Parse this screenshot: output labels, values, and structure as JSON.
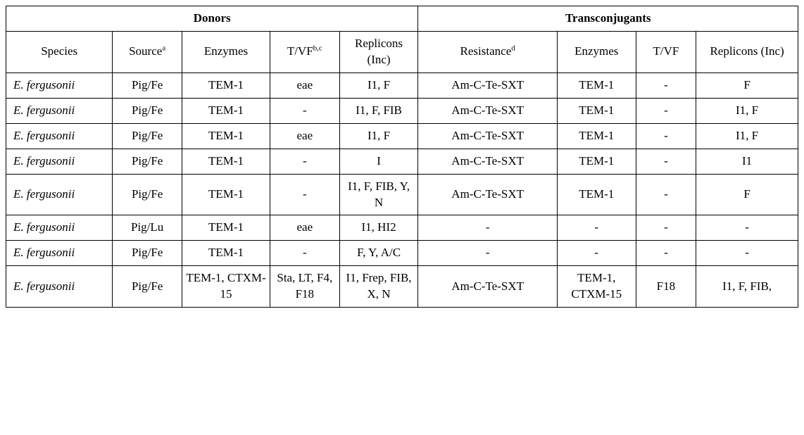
{
  "table": {
    "group_headers": {
      "donors": "Donors",
      "transconjugants": "Transconjugants"
    },
    "sub_headers": {
      "species": "Species",
      "source": {
        "text": "Source",
        "sup": "a"
      },
      "donor_enzymes": "Enzymes",
      "donor_tvf": {
        "text": "T/VF",
        "sup": "b,c"
      },
      "donor_replicons": "Replicons (Inc)",
      "resistance": {
        "text": "Resistance",
        "sup": "d"
      },
      "tc_enzymes": "Enzymes",
      "tc_tvf": "T/VF",
      "tc_replicons": "Replicons (Inc)"
    },
    "rows": [
      {
        "species": "E. fergusonii",
        "source": "Pig/Fe",
        "donor_enzymes": "TEM-1",
        "donor_tvf": "eae",
        "donor_replicons": "I1, F",
        "resistance": "Am-C-Te-SXT",
        "tc_enzymes": "TEM-1",
        "tc_tvf": "-",
        "tc_replicons": "F"
      },
      {
        "species": "E. fergusonii",
        "source": "Pig/Fe",
        "donor_enzymes": "TEM-1",
        "donor_tvf": "-",
        "donor_replicons": "I1, F, FIB",
        "resistance": "Am-C-Te-SXT",
        "tc_enzymes": "TEM-1",
        "tc_tvf": "-",
        "tc_replicons": "I1, F"
      },
      {
        "species": "E. fergusonii",
        "source": "Pig/Fe",
        "donor_enzymes": "TEM-1",
        "donor_tvf": "eae",
        "donor_replicons": "I1, F",
        "resistance": "Am-C-Te-SXT",
        "tc_enzymes": "TEM-1",
        "tc_tvf": "-",
        "tc_replicons": "I1, F"
      },
      {
        "species": "E. fergusonii",
        "source": "Pig/Fe",
        "donor_enzymes": "TEM-1",
        "donor_tvf": "-",
        "donor_replicons": "I",
        "resistance": "Am-C-Te-SXT",
        "tc_enzymes": "TEM-1",
        "tc_tvf": "-",
        "tc_replicons": "I1"
      },
      {
        "species": "E. fergusonii",
        "source": "Pig/Fe",
        "donor_enzymes": "TEM-1",
        "donor_tvf": "-",
        "donor_replicons": "I1, F, FIB, Y, N",
        "resistance": "Am-C-Te-SXT",
        "tc_enzymes": "TEM-1",
        "tc_tvf": "-",
        "tc_replicons": "F"
      },
      {
        "species": "E. fergusonii",
        "source": "Pig/Lu",
        "donor_enzymes": "TEM-1",
        "donor_tvf": "eae",
        "donor_replicons": "I1, HI2",
        "resistance": "-",
        "tc_enzymes": "-",
        "tc_tvf": "-",
        "tc_replicons": "-"
      },
      {
        "species": "E. fergusonii",
        "source": "Pig/Fe",
        "donor_enzymes": "TEM-1",
        "donor_tvf": "-",
        "donor_replicons": "F, Y, A/C",
        "resistance": "-",
        "tc_enzymes": "-",
        "tc_tvf": "-",
        "tc_replicons": "-"
      },
      {
        "species": "E. fergusonii",
        "source": "Pig/Fe",
        "donor_enzymes": "TEM-1, CTXM-15",
        "donor_tvf": "Sta, LT, F4, F18",
        "donor_replicons": "I1, Frep, FIB, X, N",
        "resistance": "Am-C-Te-SXT",
        "tc_enzymes": "TEM-1, CTXM-15",
        "tc_tvf": "F18",
        "tc_replicons": "I1, F, FIB,"
      }
    ]
  }
}
